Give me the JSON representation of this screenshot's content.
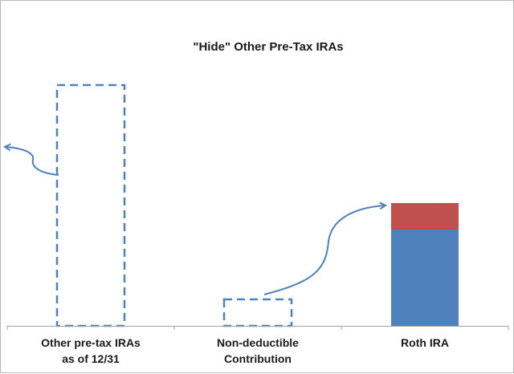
{
  "chart_data": {
    "type": "bar",
    "title": "\"Hide\" Other Pre-Tax IRAs",
    "categories": [
      [
        "Other pre-tax IRAs",
        "as of 12/31"
      ],
      [
        "Non-deductible",
        "Contribution"
      ],
      [
        "Roth IRA"
      ]
    ],
    "series": [
      {
        "style": "dashed-outline",
        "values": [
          100,
          11,
          0
        ]
      },
      {
        "style": "solid",
        "values": [
          0,
          0,
          40
        ]
      },
      {
        "style": "solid",
        "values": [
          0,
          0,
          11
        ]
      }
    ],
    "ylim": [
      0,
      110
    ],
    "grid": false,
    "legend": "none",
    "colors": {
      "outline": "#4f81bd",
      "blue": "#4f81bd",
      "red": "#c0504d",
      "arrow": "#4f81bd",
      "axis": "#a0a0a0"
    }
  }
}
